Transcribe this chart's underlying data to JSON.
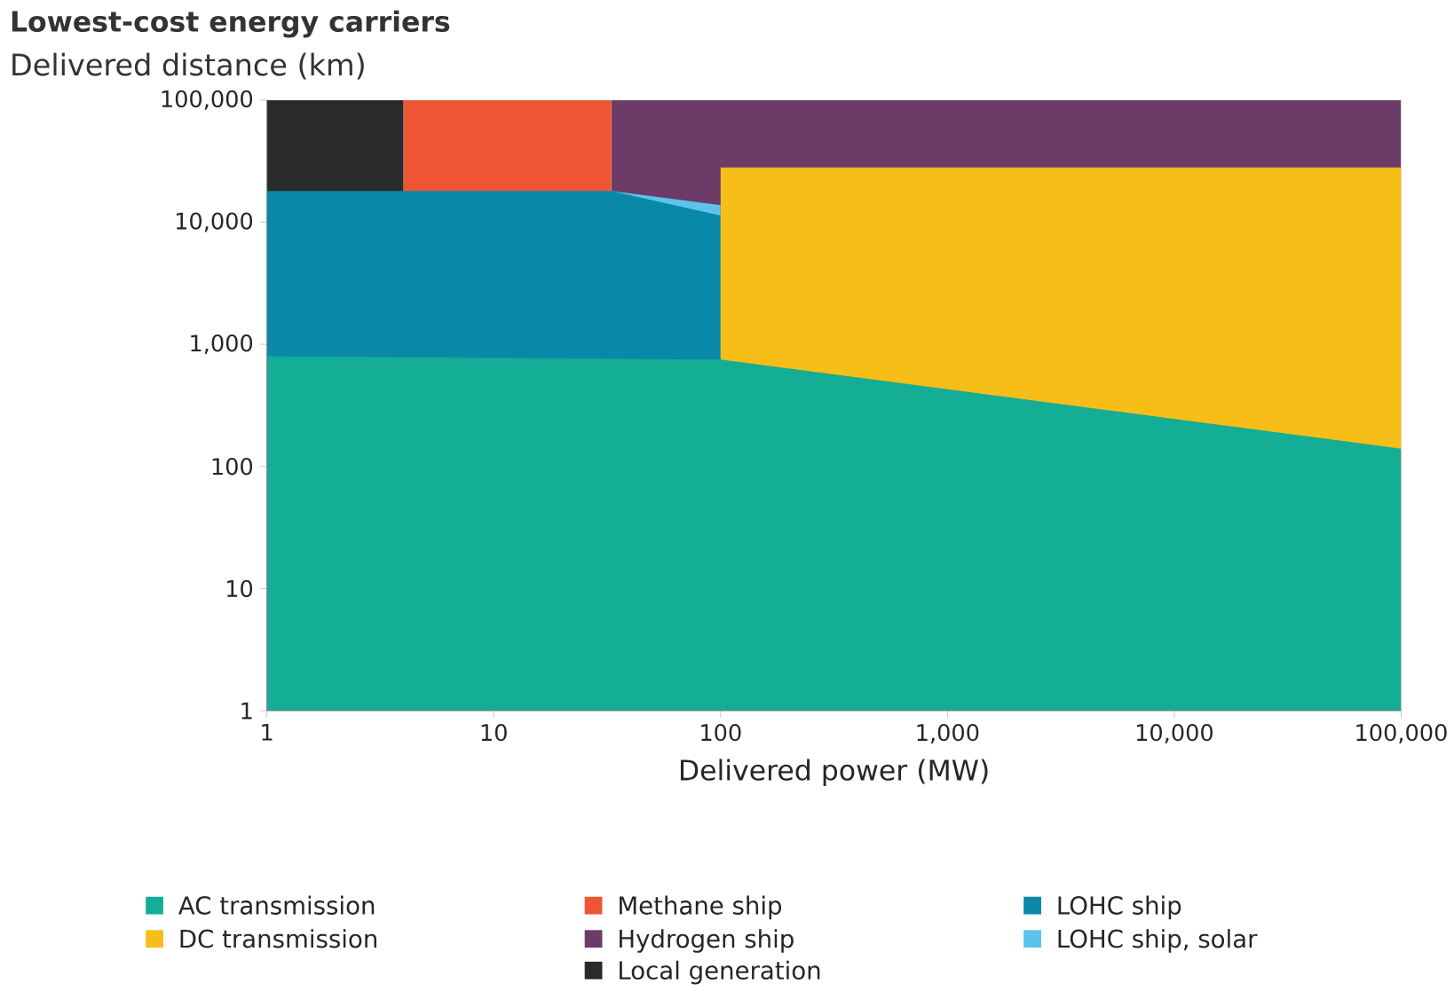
{
  "chart_data": {
    "type": "area",
    "title": "Lowest-cost energy carriers",
    "ylabel": "Delivered distance (km)",
    "xlabel": "Delivered power (MW)",
    "log": "xy",
    "legend": "bottom",
    "xlim": [
      1,
      100000
    ],
    "ylim": [
      1,
      100000
    ],
    "xticks": [
      1,
      10,
      100,
      {
        "value": 1000,
        "label": "1,000"
      },
      {
        "value": 10000,
        "label": "10,000"
      },
      {
        "value": 100000,
        "label": "100,000"
      }
    ],
    "yticks": [
      1,
      10,
      100,
      {
        "value": 1000,
        "label": "1,000"
      },
      {
        "value": 10000,
        "label": "10,000"
      },
      {
        "value": 100000,
        "label": "100,000"
      }
    ],
    "series": [
      {
        "name": "Hydrogen ship",
        "color": "#6c3b68",
        "x": [
          33,
          100000
        ],
        "values": [
          100000,
          100000
        ]
      },
      {
        "name": "Methane ship",
        "color": "#ee5535",
        "x": [
          4,
          33
        ],
        "values": [
          100000,
          100000
        ]
      },
      {
        "name": "Local generation",
        "color": "#2a2a2a",
        "x": [
          1,
          4
        ],
        "values": [
          100000,
          100000
        ]
      },
      {
        "name": "LOHC ship, solar",
        "color": "#5cc3eb",
        "x": [
          33,
          100
        ],
        "values": [
          18000,
          13800
        ]
      },
      {
        "name": "LOHC ship",
        "color": "#0a88a8",
        "x": [
          1,
          33,
          100
        ],
        "values": [
          18000,
          18000,
          11300
        ]
      },
      {
        "name": "DC transmission",
        "color": "#f6be17",
        "x": [
          100,
          100000
        ],
        "values": [
          28000,
          28000
        ]
      },
      {
        "name": "AC transmission",
        "color": "#14ad95",
        "x": [
          1,
          100,
          100000
        ],
        "values": [
          800,
          750,
          140
        ]
      }
    ]
  }
}
